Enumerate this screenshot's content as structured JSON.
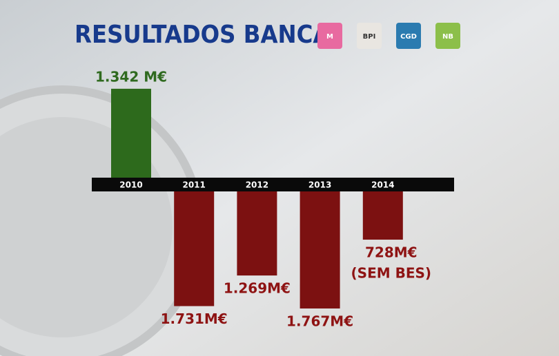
{
  "chart_data": {
    "type": "bar",
    "title": "RESULTADOS BANCA",
    "logos": [
      "M",
      "BPI",
      "CGD",
      "NB"
    ],
    "categories": [
      "2010",
      "2011",
      "2012",
      "2013",
      "2014"
    ],
    "values": [
      1342,
      -1731,
      -1269,
      -1767,
      -728
    ],
    "value_labels": [
      "1.342 M€",
      "1.731M€",
      "1.269M€",
      "1.767M€",
      "728M€"
    ],
    "annotation": "(SEM BES)",
    "positive_color": "#2d6a1c",
    "negative_color": "#7c1111",
    "positive_label_color": "#2f6a1f",
    "negative_label_color": "#8e1313"
  }
}
